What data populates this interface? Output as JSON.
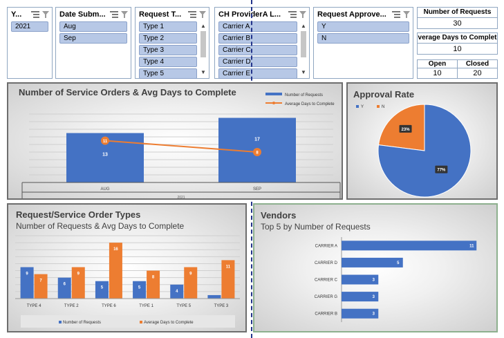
{
  "slicers": [
    {
      "title": "Y...",
      "items": [
        "2021"
      ],
      "scroll": false
    },
    {
      "title": "Date Subm...",
      "items": [
        "Aug",
        "Sep"
      ],
      "scroll": false
    },
    {
      "title": "Request T...",
      "items": [
        "Type 1",
        "Type 2",
        "Type 3",
        "Type 4",
        "Type 5"
      ],
      "scroll": true
    },
    {
      "title": "CH ProviderA L...",
      "items": [
        "Carrier A",
        "Carrier B",
        "Carrier C",
        "Carrier D",
        "Carrier E"
      ],
      "scroll": true
    },
    {
      "title": "Request Approve...",
      "items": [
        "Y",
        "N"
      ],
      "scroll": false
    }
  ],
  "kpis": {
    "requests_label": "Number of Requests",
    "requests_value": "30",
    "avg_label": "verage Days to Complet",
    "avg_value": "10",
    "open_label": "Open",
    "open_value": "10",
    "closed_label": "Closed",
    "closed_value": "20"
  },
  "colors": {
    "blue": "#4472c4",
    "orange": "#ed7d31"
  },
  "chart_data": [
    {
      "type": "bar",
      "title": "Number of Service Orders & Avg Days to Complete",
      "categories": [
        "AUG",
        "SEP"
      ],
      "group_label": "2021",
      "series": [
        {
          "name": "Number of Requests",
          "values": [
            13,
            17
          ]
        },
        {
          "name": "Average Days to Complete",
          "values": [
            11,
            8
          ],
          "kind": "line"
        }
      ],
      "legend": "top-right"
    },
    {
      "type": "pie",
      "title": "Approval Rate",
      "labels": [
        "Y",
        "N"
      ],
      "values": [
        77,
        23
      ],
      "value_labels": [
        "77%",
        "23%"
      ],
      "legend": "top-left"
    },
    {
      "type": "bar",
      "title": "Request/Service Order Types",
      "subtitle": "Number of Requests & Avg Days to Complete",
      "categories": [
        "TYPE 4",
        "TYPE 2",
        "TYPE 6",
        "TYPE 1",
        "TYPE 5",
        "TYPE 3"
      ],
      "series": [
        {
          "name": "Number of Requests",
          "values": [
            9,
            6,
            5,
            5,
            4,
            1
          ]
        },
        {
          "name": "Average Days to Complete",
          "values": [
            7,
            9,
            16,
            8,
            9,
            11
          ]
        }
      ],
      "data_labels": [
        [
          "9",
          "6",
          "5",
          "5",
          "4",
          ""
        ],
        [
          "7",
          "9",
          "16",
          "8",
          "9",
          "11"
        ]
      ],
      "legend": "bottom"
    },
    {
      "type": "bar",
      "orientation": "horizontal",
      "title": "Vendors",
      "subtitle": "Top 5 by Number of Requests",
      "categories": [
        "CARRIER A",
        "CARRIER D",
        "CARRIER C",
        "CARRIER G",
        "CARRIER B"
      ],
      "values": [
        11,
        5,
        3,
        3,
        3
      ]
    }
  ]
}
